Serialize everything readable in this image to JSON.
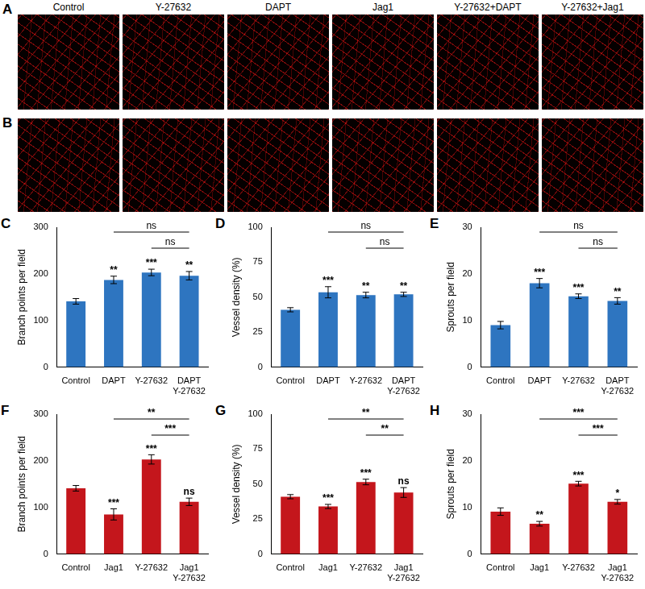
{
  "image_panels": [
    {
      "panel": "A",
      "labels": [
        "Control",
        "Y-27632",
        "DAPT",
        "Jag1",
        "Y-27632+DAPT",
        "Y-27632+Jag1"
      ]
    },
    {
      "panel": "B"
    }
  ],
  "chart_data": [
    {
      "panel": "C",
      "type": "bar",
      "y_label": "Branch points per field",
      "categories": [
        "Control",
        "DAPT",
        "Y-27632",
        "DAPT Y-27632"
      ],
      "values": [
        141,
        187,
        203,
        196
      ],
      "errors": [
        6,
        8,
        7,
        9
      ],
      "significance": [
        null,
        "**",
        "***",
        "**"
      ],
      "comparisons": [
        {
          "from": "DAPT",
          "to": "DAPT Y-27632",
          "label": "ns"
        },
        {
          "from": "Y-27632",
          "to": "DAPT Y-27632",
          "label": "ns"
        }
      ],
      "color": "#2e75c0",
      "ylim": [
        0,
        300
      ],
      "yticks": [
        0,
        100,
        200,
        300
      ],
      "grid": false
    },
    {
      "panel": "D",
      "type": "bar",
      "y_label": "Vessel density (%)",
      "categories": [
        "Control",
        "DAPT",
        "Y-27632",
        "DAPT Y-27632"
      ],
      "values": [
        41,
        53.5,
        51.5,
        52
      ],
      "errors": [
        1.5,
        4,
        2,
        1.5
      ],
      "significance": [
        null,
        "***",
        "**",
        "**"
      ],
      "comparisons": [
        {
          "from": "DAPT",
          "to": "DAPT Y-27632",
          "label": "ns"
        },
        {
          "from": "Y-27632",
          "to": "DAPT Y-27632",
          "label": "ns"
        }
      ],
      "color": "#2e75c0",
      "ylim": [
        0,
        100
      ],
      "yticks": [
        0,
        25,
        50,
        75,
        100
      ],
      "grid": false
    },
    {
      "panel": "E",
      "type": "bar",
      "y_label": "Sprouts per field",
      "categories": [
        "Control",
        "DAPT",
        "Y-27632",
        "DAPT Y-27632"
      ],
      "values": [
        9,
        18,
        15.2,
        14.2
      ],
      "errors": [
        0.8,
        1,
        0.5,
        0.7
      ],
      "significance": [
        null,
        "***",
        "***",
        "**"
      ],
      "comparisons": [
        {
          "from": "DAPT",
          "to": "DAPT Y-27632",
          "label": "ns"
        },
        {
          "from": "Y-27632",
          "to": "DAPT Y-27632",
          "label": "ns"
        }
      ],
      "color": "#2e75c0",
      "ylim": [
        0,
        30
      ],
      "yticks": [
        0,
        10,
        20,
        30
      ],
      "grid": false
    },
    {
      "panel": "F",
      "type": "bar",
      "y_label": "Branch points per field",
      "categories": [
        "Control",
        "Jag1",
        "Y-27632",
        "Jag1 Y-27632"
      ],
      "values": [
        141,
        85,
        203,
        112
      ],
      "errors": [
        6,
        12,
        10,
        8
      ],
      "significance": [
        null,
        "***",
        "***",
        "ns"
      ],
      "comparisons": [
        {
          "from": "Jag1",
          "to": "Jag1 Y-27632",
          "label": "**"
        },
        {
          "from": "Y-27632",
          "to": "Jag1 Y-27632",
          "label": "***"
        }
      ],
      "color": "#c4161c",
      "ylim": [
        0,
        300
      ],
      "yticks": [
        0,
        100,
        200,
        300
      ],
      "grid": false
    },
    {
      "panel": "G",
      "type": "bar",
      "y_label": "Vessel density (%)",
      "categories": [
        "Control",
        "Jag1",
        "Y-27632",
        "Jag1 Y-27632"
      ],
      "values": [
        41,
        34,
        51.5,
        44
      ],
      "errors": [
        1.5,
        1.5,
        2,
        3.5
      ],
      "significance": [
        null,
        "***",
        "***",
        "ns"
      ],
      "comparisons": [
        {
          "from": "Jag1",
          "to": "Jag1 Y-27632",
          "label": "**"
        },
        {
          "from": "Y-27632",
          "to": "Jag1 Y-27632",
          "label": "**"
        }
      ],
      "color": "#c4161c",
      "ylim": [
        0,
        100
      ],
      "yticks": [
        0,
        25,
        50,
        75,
        100
      ],
      "grid": false
    },
    {
      "panel": "H",
      "type": "bar",
      "y_label": "Sprouts per field",
      "categories": [
        "Control",
        "Jag1",
        "Y-27632",
        "Jag1 Y-27632"
      ],
      "values": [
        9.1,
        6.5,
        15.1,
        11.2
      ],
      "errors": [
        0.8,
        0.5,
        0.5,
        0.5
      ],
      "significance": [
        null,
        "**",
        "***",
        "*"
      ],
      "comparisons": [
        {
          "from": "Jag1",
          "to": "Jag1 Y-27632",
          "label": "***"
        },
        {
          "from": "Y-27632",
          "to": "Jag1 Y-27632",
          "label": "***"
        }
      ],
      "color": "#c4161c",
      "ylim": [
        0,
        30
      ],
      "yticks": [
        0,
        10,
        20,
        30
      ],
      "grid": false
    }
  ]
}
